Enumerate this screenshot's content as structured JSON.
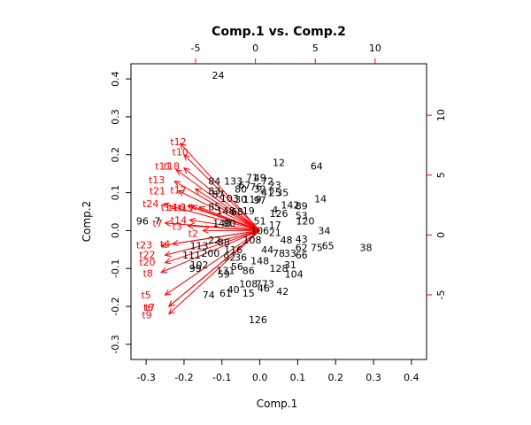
{
  "chart_data": {
    "type": "scatter",
    "subtype": "biplot",
    "title": "Comp.1 vs. Comp.2",
    "xlabel": "Comp.1",
    "ylabel": "Comp.2",
    "xlim": [
      -0.34,
      0.44
    ],
    "ylim": [
      -0.34,
      0.44
    ],
    "x_ticks": [
      "-0.3",
      "-0.2",
      "-0.1",
      "0.0",
      "0.1",
      "0.2",
      "0.3",
      "0.4"
    ],
    "y_ticks": [
      "-0.3",
      "-0.2",
      "-0.1",
      "0.0",
      "0.1",
      "0.2",
      "0.3",
      "0.4"
    ],
    "top_ticks": [
      "-5",
      "0",
      "5",
      "10"
    ],
    "right_ticks": [
      "-5",
      "0",
      "5",
      "10"
    ],
    "top_axis_range": [
      -10.4,
      14.3
    ],
    "right_axis_range": [
      -10.4,
      14.3
    ],
    "observation_color": "#000000",
    "variable_color": "#ff0000",
    "observations": [
      {
        "label": "24",
        "x": -0.11,
        "y": 0.41
      },
      {
        "label": "12",
        "x": 0.05,
        "y": 0.18
      },
      {
        "label": "64",
        "x": 0.15,
        "y": 0.17
      },
      {
        "label": "84",
        "x": -0.12,
        "y": 0.13
      },
      {
        "label": "133",
        "x": -0.07,
        "y": 0.13
      },
      {
        "label": "71",
        "x": -0.02,
        "y": 0.14
      },
      {
        "label": "49",
        "x": 0.0,
        "y": 0.14
      },
      {
        "label": "67",
        "x": -0.04,
        "y": 0.12
      },
      {
        "label": "72",
        "x": 0.02,
        "y": 0.13
      },
      {
        "label": "23",
        "x": 0.04,
        "y": 0.12
      },
      {
        "label": "80",
        "x": -0.05,
        "y": 0.11
      },
      {
        "label": "83",
        "x": -0.12,
        "y": 0.105
      },
      {
        "label": "76",
        "x": -0.01,
        "y": 0.115
      },
      {
        "label": "32",
        "x": 0.0,
        "y": 0.11
      },
      {
        "label": "41",
        "x": 0.02,
        "y": 0.1
      },
      {
        "label": "25",
        "x": 0.04,
        "y": 0.1
      },
      {
        "label": "35",
        "x": 0.06,
        "y": 0.1
      },
      {
        "label": "87",
        "x": -0.11,
        "y": 0.095
      },
      {
        "label": "103",
        "x": -0.08,
        "y": 0.085
      },
      {
        "label": "30",
        "x": -0.05,
        "y": 0.083
      },
      {
        "label": "119",
        "x": -0.02,
        "y": 0.083
      },
      {
        "label": "97",
        "x": 0.0,
        "y": 0.08
      },
      {
        "label": "14",
        "x": 0.16,
        "y": 0.084
      },
      {
        "label": "142",
        "x": 0.08,
        "y": 0.068
      },
      {
        "label": "89",
        "x": 0.11,
        "y": 0.065
      },
      {
        "label": "85",
        "x": -0.12,
        "y": 0.063
      },
      {
        "label": "148",
        "x": -0.09,
        "y": 0.052
      },
      {
        "label": "68",
        "x": -0.06,
        "y": 0.05
      },
      {
        "label": "19",
        "x": -0.03,
        "y": 0.052
      },
      {
        "label": "4",
        "x": 0.04,
        "y": 0.055
      },
      {
        "label": "126",
        "x": 0.05,
        "y": 0.045
      },
      {
        "label": "53",
        "x": 0.11,
        "y": 0.04
      },
      {
        "label": "96",
        "x": -0.31,
        "y": 0.025
      },
      {
        "label": "7",
        "x": -0.27,
        "y": 0.025
      },
      {
        "label": "140",
        "x": -0.1,
        "y": 0.02
      },
      {
        "label": "90",
        "x": -0.08,
        "y": 0.02
      },
      {
        "label": "51",
        "x": 0.0,
        "y": 0.025
      },
      {
        "label": "17",
        "x": 0.04,
        "y": 0.015
      },
      {
        "label": "120",
        "x": 0.12,
        "y": 0.025
      },
      {
        "label": "34",
        "x": 0.17,
        "y": 0.0
      },
      {
        "label": "106",
        "x": 0.0,
        "y": 0.0
      },
      {
        "label": "21",
        "x": 0.04,
        "y": -0.005
      },
      {
        "label": "22",
        "x": -0.12,
        "y": -0.025
      },
      {
        "label": "88",
        "x": -0.095,
        "y": -0.03
      },
      {
        "label": "113",
        "x": -0.16,
        "y": -0.04
      },
      {
        "label": "108",
        "x": -0.02,
        "y": -0.025
      },
      {
        "label": "48",
        "x": 0.07,
        "y": -0.025
      },
      {
        "label": "43",
        "x": 0.11,
        "y": -0.022
      },
      {
        "label": "65",
        "x": 0.18,
        "y": -0.04
      },
      {
        "label": "75",
        "x": 0.15,
        "y": -0.045
      },
      {
        "label": "38",
        "x": 0.28,
        "y": -0.045
      },
      {
        "label": "116",
        "x": -0.07,
        "y": -0.05
      },
      {
        "label": "44",
        "x": 0.02,
        "y": -0.05
      },
      {
        "label": "62",
        "x": 0.11,
        "y": -0.045
      },
      {
        "label": "111",
        "x": -0.18,
        "y": -0.065
      },
      {
        "label": "200",
        "x": -0.13,
        "y": -0.06
      },
      {
        "label": "92",
        "x": -0.08,
        "y": -0.07
      },
      {
        "label": "36",
        "x": -0.05,
        "y": -0.07
      },
      {
        "label": "78",
        "x": 0.05,
        "y": -0.06
      },
      {
        "label": "33",
        "x": 0.08,
        "y": -0.06
      },
      {
        "label": "66",
        "x": 0.11,
        "y": -0.065
      },
      {
        "label": "102",
        "x": -0.16,
        "y": -0.09
      },
      {
        "label": "99",
        "x": -0.17,
        "y": -0.1
      },
      {
        "label": "148",
        "x": 0.0,
        "y": -0.08
      },
      {
        "label": "131",
        "x": -0.09,
        "y": -0.105
      },
      {
        "label": "56",
        "x": -0.06,
        "y": -0.095
      },
      {
        "label": "86",
        "x": -0.03,
        "y": -0.105
      },
      {
        "label": "59",
        "x": -0.095,
        "y": -0.115
      },
      {
        "label": "128",
        "x": 0.05,
        "y": -0.1
      },
      {
        "label": "31",
        "x": 0.08,
        "y": -0.09
      },
      {
        "label": "104",
        "x": 0.09,
        "y": -0.115
      },
      {
        "label": "108",
        "x": -0.03,
        "y": -0.14
      },
      {
        "label": "77",
        "x": 0.005,
        "y": -0.14
      },
      {
        "label": "3",
        "x": 0.03,
        "y": -0.14
      },
      {
        "label": "40",
        "x": -0.07,
        "y": -0.155
      },
      {
        "label": "46",
        "x": 0.01,
        "y": -0.152
      },
      {
        "label": "42",
        "x": 0.06,
        "y": -0.16
      },
      {
        "label": "74",
        "x": -0.135,
        "y": -0.17
      },
      {
        "label": "61",
        "x": -0.09,
        "y": -0.165
      },
      {
        "label": "15",
        "x": -0.03,
        "y": -0.165
      },
      {
        "label": "126",
        "x": -0.005,
        "y": -0.235
      }
    ],
    "variables": [
      {
        "label": "t12",
        "x": -0.21,
        "y": 0.23,
        "lx": -0.215,
        "ly": 0.235
      },
      {
        "label": "t10",
        "x": -0.2,
        "y": 0.2,
        "lx": -0.21,
        "ly": 0.208
      },
      {
        "label": "t11",
        "x": -0.22,
        "y": 0.16,
        "lx": -0.255,
        "ly": 0.17
      },
      {
        "label": "t18",
        "x": -0.2,
        "y": 0.165,
        "lx": -0.233,
        "ly": 0.17
      },
      {
        "label": "t13",
        "x": -0.225,
        "y": 0.13,
        "lx": -0.272,
        "ly": 0.134
      },
      {
        "label": "t17",
        "x": -0.17,
        "y": 0.11,
        "lx": -0.215,
        "ly": 0.107
      },
      {
        "label": "t21",
        "x": -0.215,
        "y": 0.105,
        "lx": -0.27,
        "ly": 0.105
      },
      {
        "label": "t24",
        "x": -0.255,
        "y": 0.07,
        "lx": -0.288,
        "ly": 0.071
      },
      {
        "label": "t14",
        "x": -0.19,
        "y": 0.065,
        "lx": -0.24,
        "ly": 0.062
      },
      {
        "label": "t16",
        "x": -0.18,
        "y": 0.065,
        "lx": -0.219,
        "ly": 0.062
      },
      {
        "label": "t15",
        "x": -0.16,
        "y": 0.062,
        "lx": -0.196,
        "ly": 0.06
      },
      {
        "label": "t14",
        "x": -0.185,
        "y": 0.028,
        "lx": -0.214,
        "ly": 0.028
      },
      {
        "label": "t3",
        "x": -0.19,
        "y": 0.013,
        "lx": -0.218,
        "ly": 0.011
      },
      {
        "label": "t7",
        "x": -0.25,
        "y": 0.02,
        "lx": -0.27,
        "ly": 0.02
      },
      {
        "label": "t2",
        "x": -0.15,
        "y": 0.0,
        "lx": -0.176,
        "ly": -0.007
      },
      {
        "label": "t4",
        "x": -0.23,
        "y": -0.035,
        "lx": -0.25,
        "ly": -0.035
      },
      {
        "label": "t23",
        "x": -0.26,
        "y": -0.04,
        "lx": -0.305,
        "ly": -0.038
      },
      {
        "label": "t22",
        "x": -0.25,
        "y": -0.065,
        "lx": -0.297,
        "ly": -0.063
      },
      {
        "label": "t20",
        "x": -0.25,
        "y": -0.085,
        "lx": -0.297,
        "ly": -0.083
      },
      {
        "label": "t8",
        "x": -0.26,
        "y": -0.11,
        "lx": -0.295,
        "ly": -0.112
      },
      {
        "label": "t5",
        "x": -0.25,
        "y": -0.17,
        "lx": -0.3,
        "ly": -0.17
      },
      {
        "label": "t6",
        "x": -0.24,
        "y": -0.2,
        "lx": -0.294,
        "ly": -0.202
      },
      {
        "label": "t7",
        "x": -0.24,
        "y": -0.2,
        "lx": -0.29,
        "ly": -0.202
      },
      {
        "label": "t9",
        "x": -0.24,
        "y": -0.22,
        "lx": -0.298,
        "ly": -0.222
      }
    ]
  }
}
